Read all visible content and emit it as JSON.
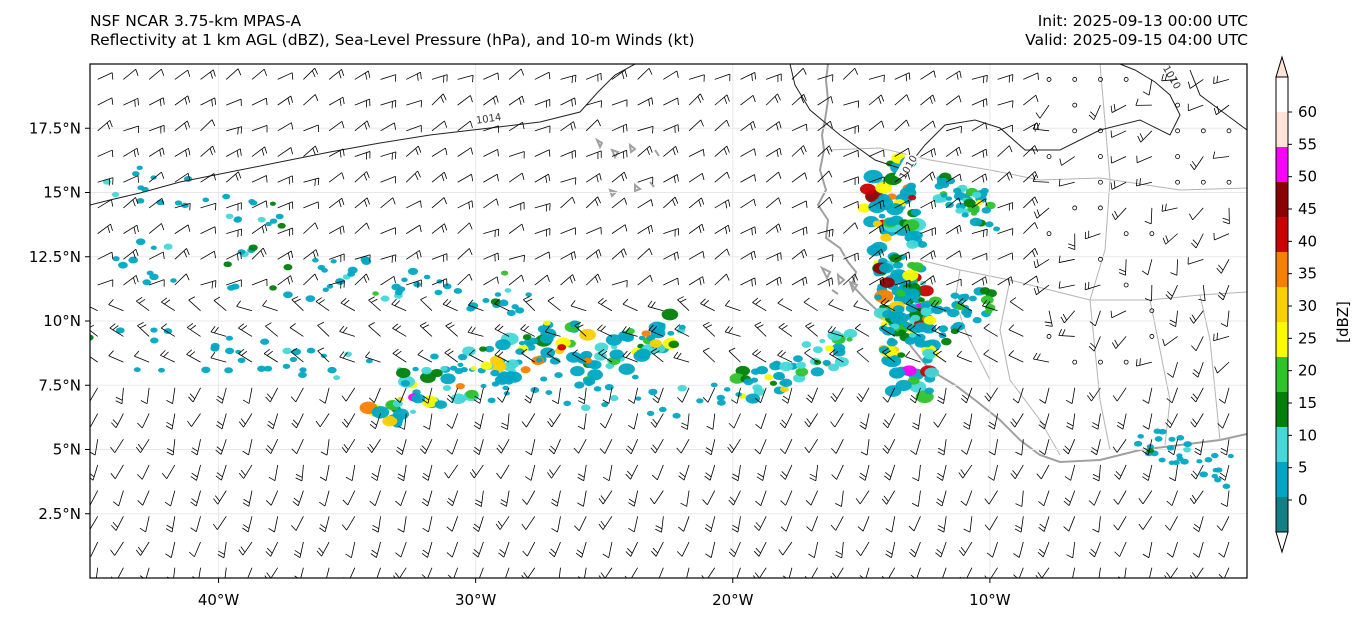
{
  "header": {
    "model": "NSF NCAR 3.75-km MPAS-A",
    "fields": "Reflectivity at 1 km AGL (dBZ), Sea-Level Pressure (hPa), and 10-m Winds (kt)",
    "init": "Init: 2025-09-13 00:00 UTC",
    "valid": "Valid: 2025-09-15 04:00 UTC"
  },
  "map": {
    "lon_range": [
      -45,
      0
    ],
    "lat_range": [
      0,
      20
    ],
    "lon_ticks": [
      {
        "value": -40,
        "label": "40°W"
      },
      {
        "value": -30,
        "label": "30°W"
      },
      {
        "value": -20,
        "label": "20°W"
      },
      {
        "value": -10,
        "label": "10°W"
      }
    ],
    "lat_ticks": [
      {
        "value": 2.5,
        "label": "2.5°N"
      },
      {
        "value": 5,
        "label": "5°N"
      },
      {
        "value": 7.5,
        "label": "7.5°N"
      },
      {
        "value": 10,
        "label": "10°N"
      },
      {
        "value": 12.5,
        "label": "12.5°N"
      },
      {
        "value": 15,
        "label": "15°N"
      },
      {
        "value": 17.5,
        "label": "17.5°N"
      }
    ],
    "contour_labels": [
      {
        "text": "1014",
        "lon": -29.5,
        "lat": 17.9
      },
      {
        "text": "1010",
        "lon": -13.2,
        "lat": 16.0
      },
      {
        "text": "1010",
        "lon": -2.9,
        "lat": 19.5
      }
    ],
    "colors": {
      "coast": "#a0a0a0",
      "border": "#b4b4b4",
      "contour": "#222222",
      "barb": "#000000"
    }
  },
  "colorbar": {
    "label": "[dBZ]",
    "levels": [
      {
        "value": "0",
        "color": "#157f86"
      },
      {
        "value": "5",
        "color": "#00a6c3"
      },
      {
        "value": "10",
        "color": "#44d8d8"
      },
      {
        "value": "15",
        "color": "#00800a"
      },
      {
        "value": "20",
        "color": "#2fc22b"
      },
      {
        "value": "25",
        "color": "#fbfb00"
      },
      {
        "value": "30",
        "color": "#f9d000"
      },
      {
        "value": "35",
        "color": "#f88000"
      },
      {
        "value": "40",
        "color": "#cc0000"
      },
      {
        "value": "45",
        "color": "#8e0000"
      },
      {
        "value": "50",
        "color": "#fb00fb"
      },
      {
        "value": "55",
        "color": "#ffe2d8"
      },
      {
        "value": "60",
        "color": ""
      }
    ],
    "under_color": "#ffffff",
    "over_color": "#ffe2d8"
  }
}
